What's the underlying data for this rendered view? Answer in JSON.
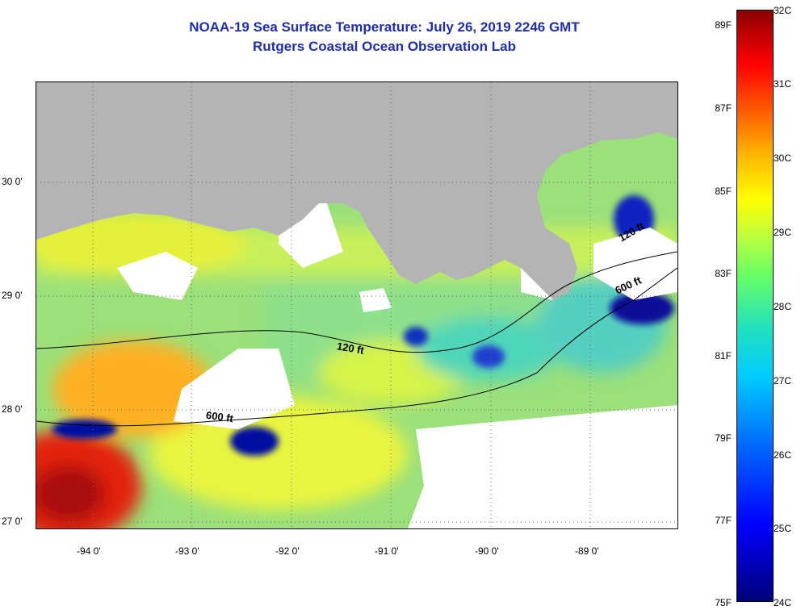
{
  "title_line1": "NOAA-19 Sea Surface Temperature:  July 26, 2019 2246 GMT",
  "title_line2": "Rutgers Coastal Ocean Observation Lab",
  "lat_labels": [
    "30 0'",
    "29 0'",
    "28 0'",
    "27 0'"
  ],
  "lon_labels": [
    "-94 0'",
    "-93 0'",
    "-92 0'",
    "-91 0'",
    "-90 0'",
    "-89 0'"
  ],
  "contour_labels": [
    "120 ft",
    "600 ft",
    "600 ft",
    "120 ft"
  ],
  "colorbar": {
    "fahrenheit": [
      "89F",
      "87F",
      "85F",
      "83F",
      "81F",
      "79F",
      "77F",
      "75F"
    ],
    "celsius": [
      "32C",
      "31C",
      "30C",
      "29C",
      "28C",
      "27C",
      "26C",
      "25C",
      "24C"
    ]
  },
  "colors": {
    "title": "#1f2fa8",
    "land": "#b4b4b4",
    "cloud": "#ffffff"
  }
}
